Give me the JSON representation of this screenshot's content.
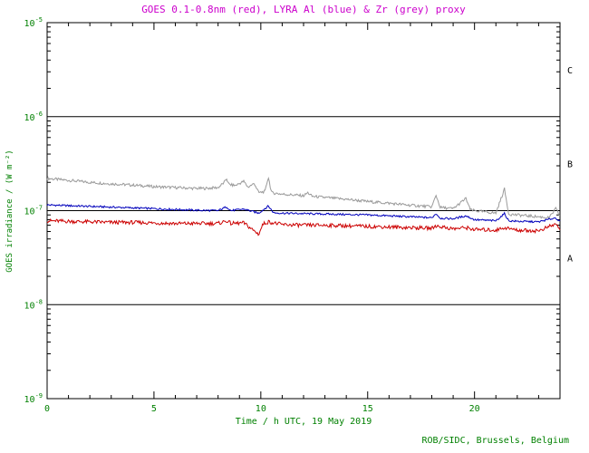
{
  "colors": {
    "title_magenta": "#cc00cc",
    "text_green": "#008000",
    "axis": "#000000",
    "background": "#ffffff"
  },
  "credit": "ROB/SIDC, Brussels, Belgium",
  "chart_data": {
    "type": "line",
    "title": "GOES 0.1-0.8nm (red), LYRA Al (blue) & Zr (grey) proxy",
    "xlabel": "Time / h UTC, 19 May 2019",
    "ylabel": "GOES irradiance / (W m⁻²)",
    "xlim": [
      0,
      24
    ],
    "x_major_ticks": [
      0,
      5,
      10,
      15,
      20
    ],
    "y_scale": "log",
    "y_exponents": [
      -5,
      -6,
      -7,
      -8,
      -9
    ],
    "hline_exponents": [
      -6,
      -7,
      -8
    ],
    "grid": "full-width horizontal lines at flare-class boundaries",
    "legend": "series identified by colors named in title",
    "class_labels": [
      {
        "label": "C",
        "between": [
          -5,
          -6
        ]
      },
      {
        "label": "B",
        "between": [
          -6,
          -7
        ]
      },
      {
        "label": "A",
        "between": [
          -7,
          -8
        ]
      }
    ],
    "series": [
      {
        "name": "LYRA Zr proxy",
        "slug": "lyra-zr-grey",
        "color": "#9a9a9a",
        "noise": 0.015,
        "points": [
          [
            0,
            2.2e-07
          ],
          [
            0.5,
            2.15e-07
          ],
          [
            1,
            2.1e-07
          ],
          [
            1.5,
            2.05e-07
          ],
          [
            2,
            2e-07
          ],
          [
            3,
            1.93e-07
          ],
          [
            4,
            1.87e-07
          ],
          [
            5,
            1.8e-07
          ],
          [
            6,
            1.76e-07
          ],
          [
            7,
            1.72e-07
          ],
          [
            7.5,
            1.73e-07
          ],
          [
            8,
            1.76e-07
          ],
          [
            8.3,
            2e-07
          ],
          [
            8.4,
            2.2e-07
          ],
          [
            8.5,
            1.9e-07
          ],
          [
            8.8,
            1.85e-07
          ],
          [
            9.2,
            2.05e-07
          ],
          [
            9.4,
            1.78e-07
          ],
          [
            9.7,
            1.95e-07
          ],
          [
            9.9,
            1.55e-07
          ],
          [
            10.2,
            1.6e-07
          ],
          [
            10.35,
            2.3e-07
          ],
          [
            10.5,
            1.55e-07
          ],
          [
            11,
            1.5e-07
          ],
          [
            11.5,
            1.47e-07
          ],
          [
            12,
            1.44e-07
          ],
          [
            12.2,
            1.55e-07
          ],
          [
            12.4,
            1.42e-07
          ],
          [
            13,
            1.38e-07
          ],
          [
            13.5,
            1.35e-07
          ],
          [
            14,
            1.32e-07
          ],
          [
            15,
            1.25e-07
          ],
          [
            16,
            1.2e-07
          ],
          [
            17,
            1.14e-07
          ],
          [
            18,
            1.1e-07
          ],
          [
            18.2,
            1.45e-07
          ],
          [
            18.4,
            1.08e-07
          ],
          [
            19,
            1.05e-07
          ],
          [
            19.6,
            1.35e-07
          ],
          [
            19.8,
            1.02e-07
          ],
          [
            20,
            1e-07
          ],
          [
            21,
            9.4e-08
          ],
          [
            21.4,
            1.7e-07
          ],
          [
            21.6,
            9.2e-08
          ],
          [
            22,
            9e-08
          ],
          [
            23,
            8.6e-08
          ],
          [
            23.5,
            8.4e-08
          ],
          [
            23.8,
            1.05e-07
          ],
          [
            24,
            8.8e-08
          ]
        ]
      },
      {
        "name": "LYRA Al proxy",
        "slug": "lyra-al-blue",
        "color": "#0000bb",
        "noise": 0.01,
        "points": [
          [
            0,
            1.15e-07
          ],
          [
            1,
            1.13e-07
          ],
          [
            2,
            1.11e-07
          ],
          [
            3,
            1.09e-07
          ],
          [
            4,
            1.07e-07
          ],
          [
            5,
            1.05e-07
          ],
          [
            6,
            1.03e-07
          ],
          [
            7,
            1.01e-07
          ],
          [
            8,
            1e-07
          ],
          [
            8.4,
            1.1e-07
          ],
          [
            8.6,
            1e-07
          ],
          [
            9.2,
            1.04e-07
          ],
          [
            9.9,
            9.4e-08
          ],
          [
            10.35,
            1.12e-07
          ],
          [
            10.6,
            9.5e-08
          ],
          [
            11,
            9.4e-08
          ],
          [
            12,
            9.3e-08
          ],
          [
            13,
            9.2e-08
          ],
          [
            14,
            9.1e-08
          ],
          [
            15,
            9e-08
          ],
          [
            16,
            8.8e-08
          ],
          [
            17,
            8.6e-08
          ],
          [
            18,
            8.4e-08
          ],
          [
            18.2,
            9.3e-08
          ],
          [
            18.4,
            8.3e-08
          ],
          [
            19,
            8.2e-08
          ],
          [
            19.6,
            8.8e-08
          ],
          [
            20,
            8e-08
          ],
          [
            21,
            7.8e-08
          ],
          [
            21.4,
            9.3e-08
          ],
          [
            21.6,
            7.8e-08
          ],
          [
            22,
            7.7e-08
          ],
          [
            23,
            7.6e-08
          ],
          [
            23.8,
            8.4e-08
          ],
          [
            24,
            7.6e-08
          ]
        ]
      },
      {
        "name": "GOES 0.1-0.8nm",
        "slug": "goes-xray-red",
        "color": "#cc0000",
        "noise": 0.02,
        "points": [
          [
            0,
            7.8e-08
          ],
          [
            1,
            7.7e-08
          ],
          [
            2,
            7.6e-08
          ],
          [
            3,
            7.5e-08
          ],
          [
            4,
            7.5e-08
          ],
          [
            5,
            7.4e-08
          ],
          [
            6,
            7.3e-08
          ],
          [
            7,
            7.3e-08
          ],
          [
            8,
            7.3e-08
          ],
          [
            8.4,
            7.8e-08
          ],
          [
            8.6,
            7.3e-08
          ],
          [
            9.2,
            7.4e-08
          ],
          [
            9.9,
            5.6e-08
          ],
          [
            10.1,
            7.2e-08
          ],
          [
            10.35,
            7.6e-08
          ],
          [
            11,
            7.1e-08
          ],
          [
            12,
            7e-08
          ],
          [
            13,
            7e-08
          ],
          [
            14,
            6.9e-08
          ],
          [
            15,
            6.8e-08
          ],
          [
            16,
            6.7e-08
          ],
          [
            17,
            6.6e-08
          ],
          [
            18,
            6.5e-08
          ],
          [
            18.2,
            6.9e-08
          ],
          [
            19,
            6.4e-08
          ],
          [
            19.6,
            6.6e-08
          ],
          [
            20,
            6.3e-08
          ],
          [
            21,
            6.2e-08
          ],
          [
            21.4,
            6.6e-08
          ],
          [
            22,
            6.2e-08
          ],
          [
            23,
            6.1e-08
          ],
          [
            23.8,
            7.2e-08
          ],
          [
            24,
            6.4e-08
          ]
        ]
      }
    ]
  }
}
